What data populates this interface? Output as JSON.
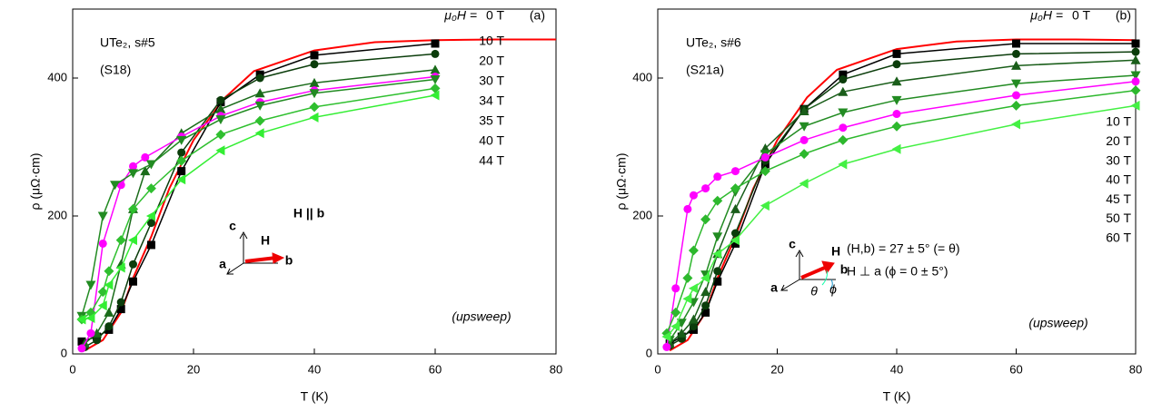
{
  "chart_data": [
    {
      "type": "line",
      "xlabel": "T (K)",
      "ylabel": "ρ (μΩ·cm)",
      "xlim": [
        0,
        80
      ],
      "ylim": [
        0,
        500
      ],
      "xticks": [
        0,
        20,
        40,
        60,
        80
      ],
      "yticks": [
        0,
        200,
        400
      ],
      "legend_title": "μ₀H =",
      "annotations": [
        "UTe₂, s#5",
        "(S18)",
        "(a)",
        "H || b",
        "(upsweep)",
        "c",
        "a",
        "b",
        "H"
      ],
      "series": [
        {
          "name": "0 T",
          "color": "#ff0000",
          "marker": "none",
          "x": [
            2,
            5,
            8,
            10,
            13,
            16,
            20,
            25,
            30,
            40,
            50,
            60,
            70,
            80
          ],
          "values": [
            5,
            20,
            60,
            110,
            170,
            240,
            310,
            370,
            410,
            440,
            452,
            455,
            456,
            456
          ]
        },
        {
          "name": "10 T",
          "color": "#000000",
          "marker": "square",
          "x": [
            1.5,
            4,
            6,
            8,
            10,
            13,
            18,
            24.5,
            31,
            40,
            60
          ],
          "values": [
            18,
            25,
            35,
            65,
            105,
            158,
            265,
            365,
            405,
            433,
            450
          ]
        },
        {
          "name": "20 T",
          "color": "#0b3d0b",
          "marker": "circle",
          "x": [
            2,
            4,
            6,
            8,
            10,
            13,
            18,
            24.5,
            31,
            40,
            60
          ],
          "values": [
            10,
            20,
            40,
            75,
            130,
            190,
            292,
            368,
            400,
            420,
            435
          ]
        },
        {
          "name": "30 T",
          "color": "#1a6b1a",
          "marker": "triangle-up",
          "x": [
            2,
            4,
            6,
            8,
            10,
            12,
            18,
            24.5,
            31,
            40,
            60
          ],
          "values": [
            15,
            30,
            60,
            130,
            210,
            265,
            320,
            355,
            378,
            393,
            412
          ]
        },
        {
          "name": "34 T",
          "color": "#ff00ff",
          "marker": "circle",
          "x": [
            1.5,
            3,
            5,
            8,
            10,
            12,
            18,
            24.5,
            31,
            40,
            60
          ],
          "values": [
            8,
            30,
            160,
            245,
            272,
            285,
            315,
            345,
            365,
            382,
            402
          ]
        },
        {
          "name": "35 T",
          "color": "#228b22",
          "marker": "triangle-down",
          "x": [
            1.5,
            3,
            5,
            7,
            10,
            13,
            18,
            24.5,
            31,
            40,
            60
          ],
          "values": [
            55,
            100,
            200,
            245,
            262,
            275,
            310,
            340,
            360,
            378,
            398
          ]
        },
        {
          "name": "40 T",
          "color": "#2fbf2f",
          "marker": "diamond",
          "x": [
            1.5,
            3,
            5,
            6,
            8,
            10,
            13,
            18,
            24.5,
            31,
            40,
            60
          ],
          "values": [
            50,
            60,
            90,
            120,
            165,
            210,
            240,
            280,
            318,
            338,
            358,
            385
          ]
        },
        {
          "name": "44 T",
          "color": "#33ee33",
          "marker": "triangle-left",
          "x": [
            1.5,
            3,
            5,
            6,
            8,
            10,
            13,
            18,
            24.5,
            31,
            40,
            60
          ],
          "values": [
            50,
            52,
            70,
            100,
            125,
            165,
            200,
            253,
            295,
            320,
            343,
            375
          ]
        }
      ]
    },
    {
      "type": "line",
      "xlabel": "T (K)",
      "ylabel": "ρ (μΩ·cm)",
      "xlim": [
        0,
        80
      ],
      "ylim": [
        0,
        500
      ],
      "xticks": [
        0,
        20,
        40,
        60,
        80
      ],
      "yticks": [
        0,
        200,
        400
      ],
      "legend_title": "μ₀H =",
      "annotations": [
        "UTe₂, s#6",
        "(S21a)",
        "(b)",
        "(upsweep)",
        "(H,b) = 27 ± 5° (= θ)",
        "H ⊥ a      (ϕ = 0 ± 5°)",
        "c",
        "a",
        "b",
        "H",
        "θ",
        "ϕ"
      ],
      "series": [
        {
          "name": "0 T",
          "color": "#ff0000",
          "marker": "none",
          "x": [
            2,
            5,
            8,
            10,
            13,
            16,
            20,
            25,
            30,
            40,
            50,
            60,
            70,
            80
          ],
          "values": [
            5,
            20,
            60,
            110,
            170,
            240,
            310,
            372,
            412,
            442,
            453,
            456,
            456,
            455
          ]
        },
        {
          "name": "10 T",
          "color": "#000000",
          "marker": "square",
          "x": [
            2,
            4,
            6,
            8,
            10,
            13,
            18,
            24.5,
            31,
            40,
            60,
            80
          ],
          "values": [
            15,
            25,
            35,
            60,
            105,
            160,
            275,
            355,
            405,
            435,
            450,
            450
          ]
        },
        {
          "name": "20 T",
          "color": "#0b3d0b",
          "marker": "circle",
          "x": [
            2,
            4,
            6,
            8,
            10,
            13,
            18,
            24.5,
            31,
            40,
            60,
            80
          ],
          "values": [
            12,
            22,
            40,
            70,
            120,
            175,
            280,
            355,
            398,
            420,
            435,
            438
          ]
        },
        {
          "name": "30 T",
          "color": "#1a5e1a",
          "marker": "triangle-up",
          "x": [
            2,
            4,
            6,
            8,
            10,
            13,
            18,
            24.5,
            31,
            40,
            60,
            80
          ],
          "values": [
            15,
            30,
            50,
            90,
            145,
            210,
            298,
            352,
            380,
            395,
            418,
            426
          ]
        },
        {
          "name": "40 T",
          "color": "#228b22",
          "marker": "triangle-down",
          "x": [
            2,
            4,
            6,
            8,
            10,
            13,
            18,
            24.5,
            31,
            40,
            60,
            80
          ],
          "values": [
            20,
            45,
            75,
            115,
            170,
            235,
            290,
            330,
            350,
            368,
            392,
            404
          ]
        },
        {
          "name": "45 T",
          "color": "#ff00ff",
          "marker": "circle",
          "x": [
            1.5,
            3,
            5,
            6,
            8,
            10,
            13,
            18,
            24.5,
            31,
            40,
            60,
            80
          ],
          "values": [
            10,
            95,
            210,
            230,
            240,
            257,
            265,
            285,
            310,
            328,
            348,
            375,
            395
          ]
        },
        {
          "name": "50 T",
          "color": "#2db82d",
          "marker": "diamond",
          "x": [
            1.5,
            3,
            5,
            6,
            8,
            10,
            13,
            18,
            24.5,
            31,
            40,
            60,
            80
          ],
          "values": [
            30,
            60,
            110,
            150,
            195,
            222,
            240,
            265,
            290,
            310,
            330,
            360,
            382
          ]
        },
        {
          "name": "60 T",
          "color": "#44f044",
          "marker": "triangle-left",
          "x": [
            1.5,
            3,
            5,
            6,
            8,
            10,
            13,
            18,
            24.5,
            31,
            40,
            60,
            80
          ],
          "values": [
            25,
            40,
            80,
            95,
            110,
            145,
            165,
            215,
            247,
            275,
            297,
            333,
            360
          ]
        }
      ]
    }
  ]
}
